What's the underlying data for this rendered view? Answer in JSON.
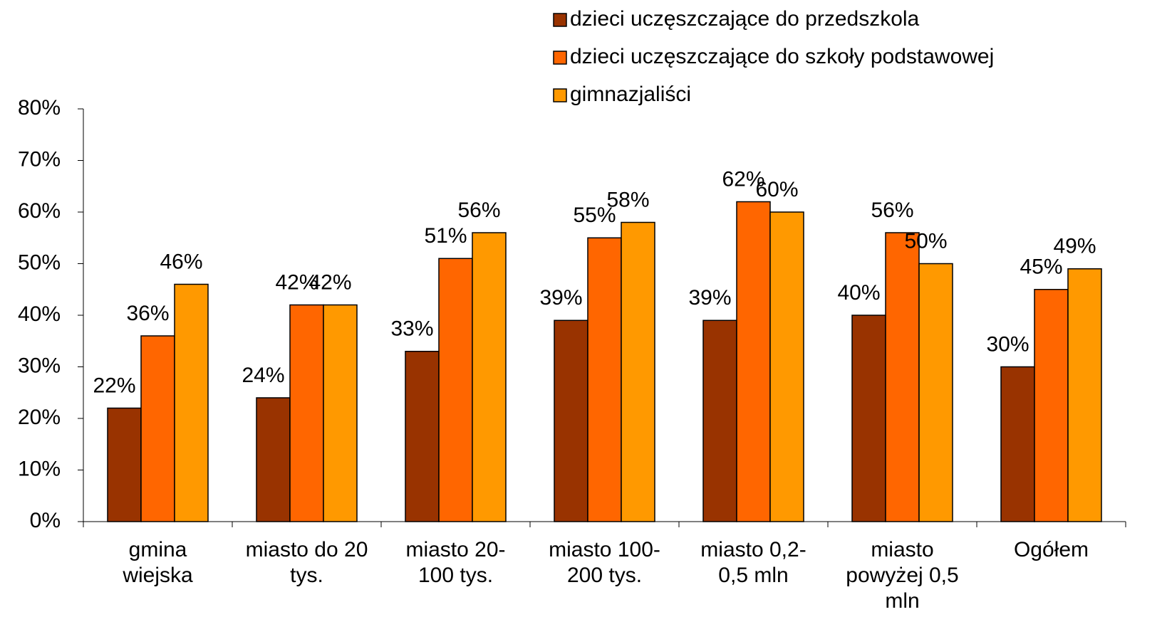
{
  "chart_data": {
    "type": "bar",
    "categories": [
      "gmina\nwiejska",
      "miasto do 20\ntys.",
      "miasto 20-\n100 tys.",
      "miasto 100-\n200 tys.",
      "miasto 0,2-\n0,5 mln",
      "miasto\npowyżej 0,5\nmln",
      "Ogółem"
    ],
    "series": [
      {
        "name": "dzieci uczęszczające do przedszkola",
        "color": "#993300",
        "values": [
          22,
          24,
          33,
          39,
          39,
          40,
          30
        ],
        "value_labels": [
          "22%",
          "24%",
          "33%",
          "39%",
          "39%",
          "40%",
          "30%"
        ]
      },
      {
        "name": "dzieci uczęszczające do szkoły podstawowej",
        "color": "#ff6600",
        "values": [
          36,
          42,
          51,
          55,
          62,
          56,
          45
        ],
        "value_labels": [
          "36%",
          "42%",
          "51%",
          "55%",
          "62%",
          "56%",
          "45%"
        ]
      },
      {
        "name": "gimnazjaliści",
        "color": "#ff9900",
        "values": [
          46,
          42,
          56,
          58,
          60,
          50,
          49
        ],
        "value_labels": [
          "46%",
          "42%",
          "56%",
          "58%",
          "60%",
          "50%",
          "49%"
        ]
      }
    ],
    "ylim": [
      0,
      80
    ],
    "yticks": [
      {
        "value": 0,
        "label": "0%"
      },
      {
        "value": 10,
        "label": "10%"
      },
      {
        "value": 20,
        "label": "20%"
      },
      {
        "value": 30,
        "label": "30%"
      },
      {
        "value": 40,
        "label": "40%"
      },
      {
        "value": 50,
        "label": "50%"
      },
      {
        "value": 60,
        "label": "60%"
      },
      {
        "value": 70,
        "label": "70%"
      },
      {
        "value": 80,
        "label": "80%"
      }
    ],
    "grid": false,
    "legend": "top-right"
  }
}
